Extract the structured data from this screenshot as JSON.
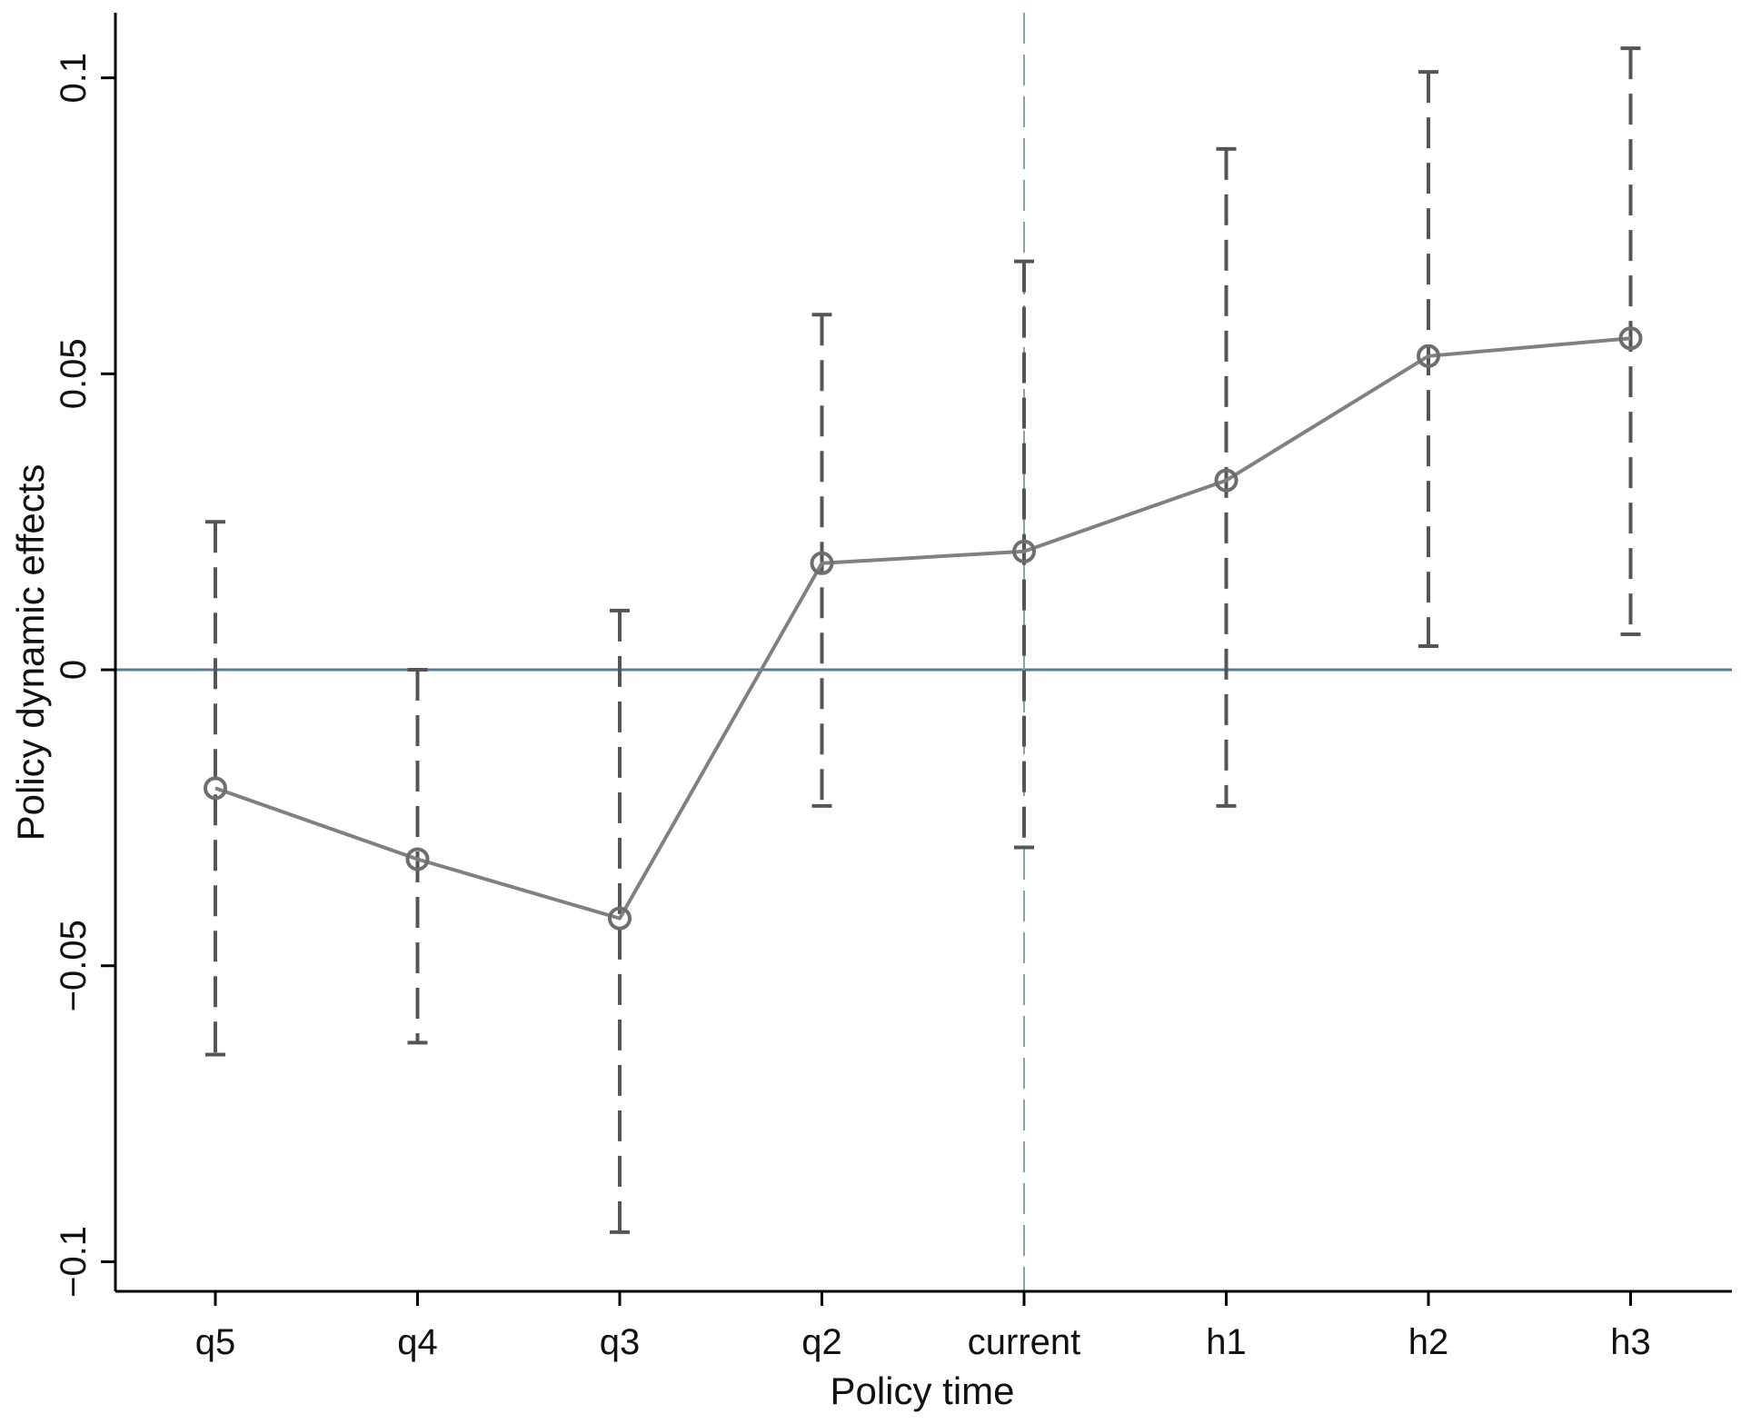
{
  "chart_data": {
    "type": "line",
    "title": "",
    "xlabel": "Policy time",
    "ylabel": "Policy dynamic effects",
    "categories": [
      "q5",
      "q4",
      "q3",
      "q2",
      "current",
      "h1",
      "h2",
      "h3"
    ],
    "series": [
      {
        "values": [
          -0.02,
          -0.032,
          -0.042,
          0.018,
          0.02,
          0.032,
          0.053,
          0.056
        ],
        "ci_lower": [
          -0.065,
          -0.063,
          -0.095,
          -0.023,
          -0.03,
          -0.023,
          0.004,
          0.006
        ],
        "ci_upper": [
          0.025,
          0.0,
          0.01,
          0.06,
          0.069,
          0.088,
          0.101,
          0.105
        ]
      }
    ],
    "ylim": [
      -0.105,
      0.111
    ],
    "yticks": [
      -0.1,
      -0.05,
      0,
      0.05,
      0.1
    ],
    "ytick_labels": [
      "−0.1",
      "−0.05",
      "0",
      "0.05",
      "0.1"
    ],
    "reference_lines": {
      "horizontal_at": 0,
      "vertical_at_category": "current"
    },
    "grid": false,
    "legend": "none",
    "colors": {
      "line": "#808080",
      "marker": "#6e6e6e",
      "errorbar": "#555555",
      "hline": "#5b7b8f",
      "vline": "#7fa8a4",
      "axis": "#000000"
    }
  }
}
